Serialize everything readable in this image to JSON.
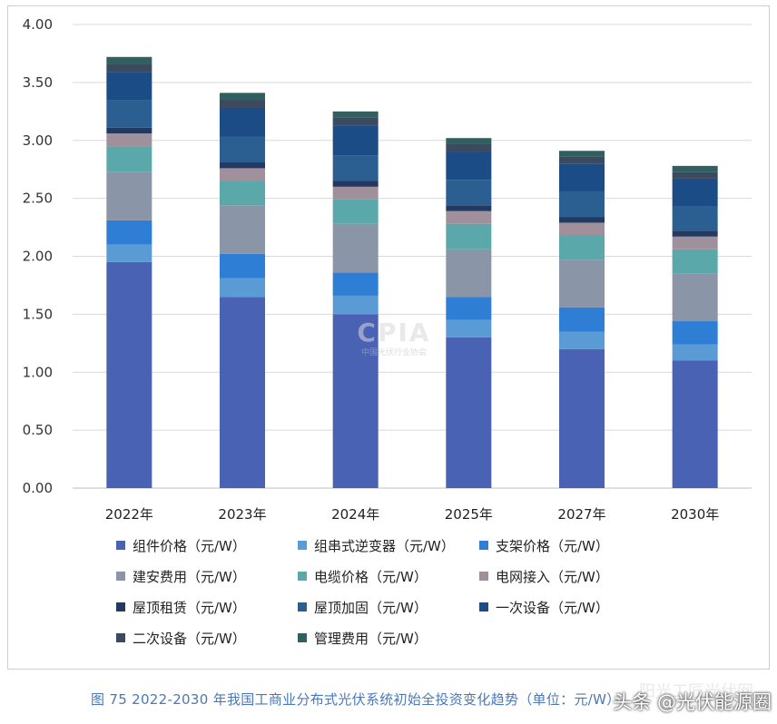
{
  "chart_data": {
    "type": "bar",
    "stacked": true,
    "categories": [
      "2022年",
      "2023年",
      "2024年",
      "2025年",
      "2027年",
      "2030年"
    ],
    "ylim": [
      0,
      4.0
    ],
    "yticks": [
      "0.00",
      "0.50",
      "1.00",
      "1.50",
      "2.00",
      "2.50",
      "3.00",
      "3.50",
      "4.00"
    ],
    "grid": true,
    "legend_position": "bottom",
    "series": [
      {
        "name": "组件价格（元/W）",
        "color": "#4a62b4",
        "values": [
          1.95,
          1.65,
          1.5,
          1.3,
          1.2,
          1.1
        ]
      },
      {
        "name": "组串式逆变器（元/W）",
        "color": "#5b9bd5",
        "values": [
          0.15,
          0.16,
          0.16,
          0.15,
          0.15,
          0.14
        ]
      },
      {
        "name": "支架价格（元/W）",
        "color": "#2e7ed6",
        "values": [
          0.21,
          0.21,
          0.2,
          0.2,
          0.21,
          0.2
        ]
      },
      {
        "name": "建安费用（元/W）",
        "color": "#8a95a8",
        "values": [
          0.42,
          0.42,
          0.42,
          0.41,
          0.41,
          0.41
        ]
      },
      {
        "name": "电缆价格（元/W）",
        "color": "#5aa8aa",
        "values": [
          0.22,
          0.21,
          0.21,
          0.22,
          0.21,
          0.21
        ]
      },
      {
        "name": "电网接入（元/W）",
        "color": "#a0909c",
        "values": [
          0.11,
          0.11,
          0.11,
          0.11,
          0.11,
          0.11
        ]
      },
      {
        "name": "屋顶租赁（元/W）",
        "color": "#243960",
        "values": [
          0.05,
          0.05,
          0.05,
          0.05,
          0.05,
          0.05
        ]
      },
      {
        "name": "屋顶加固（元/W）",
        "color": "#2b5f92",
        "values": [
          0.24,
          0.22,
          0.22,
          0.22,
          0.22,
          0.21
        ]
      },
      {
        "name": "一次设备（元/W）",
        "color": "#1c4c86",
        "values": [
          0.24,
          0.25,
          0.26,
          0.24,
          0.24,
          0.24
        ]
      },
      {
        "name": "二次设备（元/W）",
        "color": "#3b4a5e",
        "values": [
          0.07,
          0.07,
          0.07,
          0.07,
          0.06,
          0.06
        ]
      },
      {
        "name": "管理费用（元/W）",
        "color": "#2f5f5f",
        "values": [
          0.06,
          0.06,
          0.05,
          0.05,
          0.05,
          0.05
        ]
      }
    ]
  },
  "caption": "图 75    2022-2030 年我国工商业分布式光伏系统初始全投资变化趋势（单位：元/W）",
  "watermark": {
    "logo_text": "CPIA",
    "logo_sub": "中国光伏行业协会",
    "overlay_back": "阳光工匠光伏网",
    "overlay_front": "头条 @光伏能源圈"
  }
}
